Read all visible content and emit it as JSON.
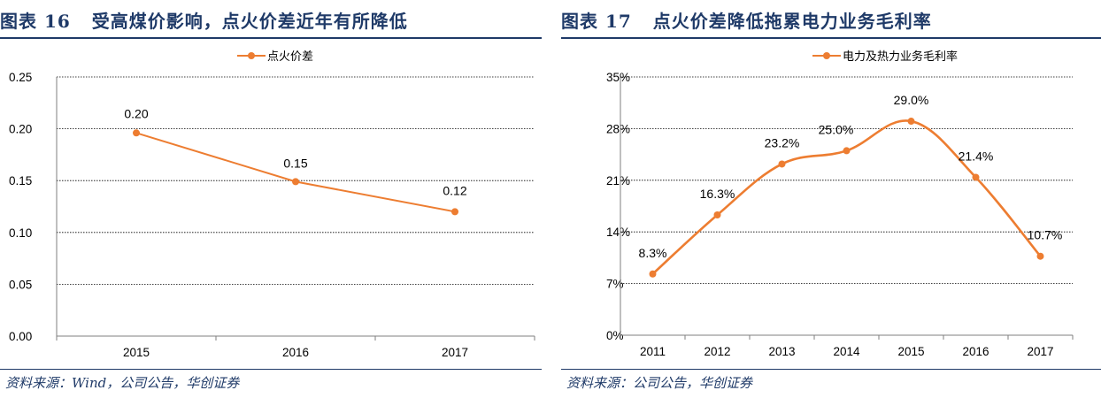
{
  "panels": [
    {
      "figure_no": "图表 16",
      "title": "受高煤价影响，点火价差近年有所降低",
      "source": "资料来源：Wind，公司公告，华创证券"
    },
    {
      "figure_no": "图表 17",
      "title": "点火价差降低拖累电力业务毛利率",
      "source": "资料来源：公司公告，华创证券"
    }
  ],
  "colors": {
    "series": "#ed7d31",
    "title": "#1f3a68",
    "grid": "#000000",
    "axis": "#7f7f7f"
  },
  "chart_data": [
    {
      "type": "line",
      "categories": [
        "2015",
        "2016",
        "2017"
      ],
      "series": [
        {
          "name": "点火价差",
          "values": [
            0.196,
            0.149,
            0.12
          ]
        }
      ],
      "data_labels": [
        "0.20",
        "0.15",
        "0.12"
      ],
      "ylim": [
        0,
        0.25
      ],
      "yticks": [
        "0.00",
        "0.05",
        "0.10",
        "0.15",
        "0.20",
        "0.25"
      ],
      "ytick_values": [
        0,
        0.05,
        0.1,
        0.15,
        0.2,
        0.25
      ],
      "grid": "dotted horizontal",
      "legend": "top-center",
      "smooth": false
    },
    {
      "type": "line",
      "categories": [
        "2011",
        "2012",
        "2013",
        "2014",
        "2015",
        "2016",
        "2017"
      ],
      "series": [
        {
          "name": "电力及热力业务毛利率",
          "values": [
            8.3,
            16.3,
            23.2,
            25.0,
            29.0,
            21.4,
            10.7
          ]
        }
      ],
      "data_labels": [
        "8.3%",
        "16.3%",
        "23.2%",
        "25.0%",
        "29.0%",
        "21.4%",
        "10.7%"
      ],
      "ylim": [
        0,
        35
      ],
      "yticks": [
        "0%",
        "7%",
        "14%",
        "21%",
        "28%",
        "35%"
      ],
      "ytick_values": [
        0,
        7,
        14,
        21,
        28,
        35
      ],
      "grid": "dotted horizontal",
      "legend": "top-center",
      "smooth": true
    }
  ]
}
